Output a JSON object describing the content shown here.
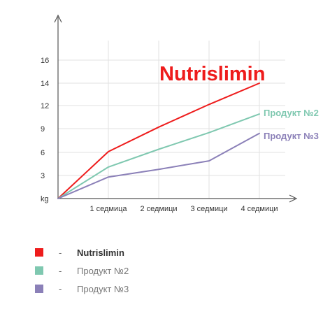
{
  "chart_data": {
    "type": "line",
    "categories": [
      "",
      "1 седмица",
      "2 седмици",
      "3 седмици",
      "4 седмици"
    ],
    "yticks": [
      "kg",
      "3",
      "6",
      "9",
      "12",
      "14",
      "16"
    ],
    "series": [
      {
        "name": "Nutrislimin",
        "color": "#ee1c1c",
        "values": [
          0,
          6.1,
          9.2,
          12.1,
          14.0
        ]
      },
      {
        "name": "Продукт №2",
        "color": "#7fc8b0",
        "values": [
          0,
          4.1,
          6.4,
          8.5,
          10.9
        ]
      },
      {
        "name": "Продукт №3",
        "color": "#8b80b8",
        "values": [
          0,
          2.8,
          3.8,
          4.9,
          8.4
        ]
      }
    ],
    "annotations": {
      "s0": "Nutrislimin",
      "s1": "Продукт №2",
      "s2": "Продукт №3"
    },
    "grid": true
  },
  "legend": {
    "dash": "-",
    "items": [
      {
        "label": "Nutrislimin",
        "color": "#ee1c1c"
      },
      {
        "label": "Продукт №2",
        "color": "#7fc8b0"
      },
      {
        "label": "Продукт №3",
        "color": "#8b80b8"
      }
    ]
  }
}
